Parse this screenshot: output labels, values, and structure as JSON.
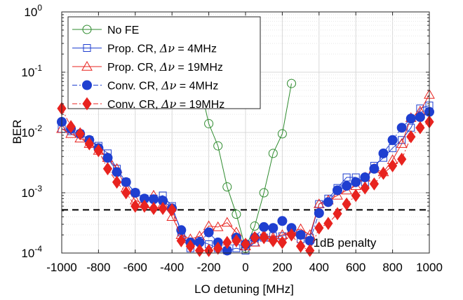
{
  "chart_data": {
    "type": "line",
    "title": "",
    "xlabel": "LO detuning [MHz]",
    "ylabel": "BER",
    "yscale": "log",
    "xlim": [
      -1000,
      1000
    ],
    "ylim": [
      0.0001,
      1
    ],
    "grid": true,
    "legend_position": "top-left",
    "x_ticks": [
      -1000,
      -800,
      -600,
      -400,
      -200,
      0,
      200,
      400,
      600,
      800,
      1000
    ],
    "x_tick_labels": [
      "-1000",
      "-800",
      "-600",
      "-400",
      "-200",
      "0",
      "200",
      "400",
      "600",
      "800",
      "1000"
    ],
    "y_ticks": [
      0.0001,
      0.001,
      0.01,
      0.1,
      1
    ],
    "y_tick_bases": [
      "10",
      "10",
      "10",
      "10",
      "10"
    ],
    "y_tick_exps": [
      "-4",
      "-3",
      "-2",
      "-1",
      "0"
    ],
    "annotation": {
      "text": "1dB penalty",
      "x": 540,
      "y": 0.00015
    },
    "threshold": {
      "y": 0.00052,
      "style": "dashed",
      "color": "#000000"
    },
    "series": [
      {
        "name": "No FE",
        "legend_prefix": "No FE",
        "legend_suffix": "",
        "color": "#2e8b2e",
        "marker": "circle-open",
        "line": "solid",
        "x": [
          -250,
          -200,
          -150,
          -100,
          -50,
          0,
          50,
          100,
          150,
          200,
          250
        ],
        "y": [
          0.065,
          0.014,
          0.006,
          0.00125,
          0.00044,
          0.00012,
          0.00028,
          0.001,
          0.0045,
          0.0095,
          0.065
        ]
      },
      {
        "name": "Prop. CR, Δν = 4MHz",
        "legend_prefix": "Prop. CR, ",
        "legend_suffix": " = 4MHz",
        "color": "#1f3fd0",
        "marker": "square-open",
        "line": "solid",
        "x": [
          -1000,
          -950,
          -900,
          -850,
          -800,
          -750,
          -700,
          -650,
          -600,
          -550,
          -500,
          -450,
          -400,
          -350,
          -300,
          -250,
          -200,
          -150,
          -100,
          -50,
          0,
          50,
          100,
          150,
          200,
          250,
          300,
          350,
          400,
          450,
          500,
          550,
          600,
          650,
          700,
          750,
          800,
          850,
          900,
          950,
          1000
        ],
        "y": [
          0.0115,
          0.0105,
          0.0095,
          0.0075,
          0.006,
          0.0045,
          0.0025,
          0.0015,
          0.001,
          0.0008,
          0.0008,
          0.0009,
          0.0006,
          0.00022,
          0.00012,
          0.00016,
          0.00014,
          0.00012,
          0.00011,
          0.00012,
          0.00011,
          0.00015,
          0.00018,
          0.00019,
          0.00019,
          0.00022,
          0.00017,
          0.00018,
          0.00065,
          0.0008,
          0.0012,
          0.0018,
          0.0018,
          0.0015,
          0.0028,
          0.0038,
          0.0055,
          0.0075,
          0.012,
          0.025,
          0.028
        ]
      },
      {
        "name": "Prop. CR, Δν = 19MHz",
        "legend_prefix": "Prop. CR, ",
        "legend_suffix": " = 19MHz",
        "color": "#e8231f",
        "marker": "triangle-open",
        "line": "solid",
        "x": [
          -1000,
          -950,
          -900,
          -850,
          -800,
          -750,
          -700,
          -650,
          -600,
          -550,
          -500,
          -450,
          -400,
          -350,
          -300,
          -250,
          -200,
          -150,
          -100,
          -50,
          0,
          50,
          100,
          150,
          200,
          250,
          300,
          350,
          400,
          450,
          500,
          550,
          600,
          650,
          700,
          750,
          800,
          850,
          900,
          950,
          1000
        ],
        "y": [
          0.0115,
          0.0095,
          0.008,
          0.0065,
          0.005,
          0.0038,
          0.0025,
          0.0012,
          0.00075,
          0.00065,
          0.0009,
          0.00065,
          0.0004,
          0.0002,
          0.00017,
          0.00019,
          0.00028,
          0.00027,
          0.00032,
          0.00022,
          0.00013,
          0.00015,
          0.0002,
          0.00018,
          0.0002,
          0.00023,
          0.00025,
          0.0002,
          0.00065,
          0.00075,
          0.0009,
          0.0011,
          0.0013,
          0.0018,
          0.0025,
          0.0022,
          0.0035,
          0.0065,
          0.0175,
          0.0225,
          0.0425
        ]
      },
      {
        "name": "Conv. CR, Δν = 4MHz",
        "legend_prefix": "Conv. CR, ",
        "legend_suffix": " = 4MHz",
        "color": "#1f3fd0",
        "marker": "circle-filled",
        "line": "dash-dot",
        "x": [
          -1000,
          -950,
          -900,
          -850,
          -800,
          -750,
          -700,
          -650,
          -600,
          -550,
          -500,
          -450,
          -400,
          -350,
          -300,
          -250,
          -200,
          -150,
          -100,
          -50,
          0,
          50,
          100,
          150,
          200,
          250,
          300,
          350,
          400,
          450,
          500,
          550,
          600,
          650,
          700,
          750,
          800,
          850,
          900,
          950,
          1000
        ],
        "y": [
          0.015,
          0.0115,
          0.0095,
          0.0075,
          0.0055,
          0.0038,
          0.0022,
          0.0015,
          0.001,
          0.0008,
          0.00078,
          0.00074,
          0.00055,
          0.00024,
          0.00015,
          0.00015,
          0.00022,
          0.00015,
          0.00011,
          0.00018,
          0.00014,
          0.00018,
          0.00027,
          0.00026,
          0.00034,
          0.00026,
          0.0002,
          0.00016,
          0.00046,
          0.0007,
          0.0011,
          0.0013,
          0.0015,
          0.0018,
          0.0025,
          0.0045,
          0.0075,
          0.012,
          0.017,
          0.018,
          0.022
        ]
      },
      {
        "name": "Conv. CR, Δν = 19MHz",
        "legend_prefix": "Conv. CR, ",
        "legend_suffix": " = 19MHz",
        "color": "#e8231f",
        "marker": "diamond-filled",
        "line": "dash-dot",
        "x": [
          -1000,
          -950,
          -900,
          -850,
          -800,
          -750,
          -700,
          -650,
          -600,
          -550,
          -500,
          -450,
          -400,
          -350,
          -300,
          -250,
          -200,
          -150,
          -100,
          -50,
          0,
          50,
          100,
          150,
          200,
          250,
          300,
          350,
          400,
          450,
          500,
          550,
          600,
          650,
          700,
          750,
          800,
          850,
          900,
          950,
          1000
        ],
        "y": [
          0.025,
          0.0125,
          0.0095,
          0.0065,
          0.005,
          0.0025,
          0.0015,
          0.001,
          0.0006,
          0.0006,
          0.00055,
          0.00055,
          0.00052,
          0.00016,
          0.00013,
          0.00011,
          0.00011,
          0.00012,
          0.00015,
          0.00016,
          0.00014,
          0.00018,
          0.00018,
          0.00016,
          0.00015,
          0.0002,
          0.00013,
          0.00011,
          0.00026,
          0.00031,
          0.00045,
          0.00065,
          0.0009,
          0.0012,
          0.0014,
          0.0021,
          0.0028,
          0.0036,
          0.0085,
          0.012,
          0.015
        ]
      }
    ]
  },
  "legend": {
    "delta_symbol": "Δν"
  }
}
